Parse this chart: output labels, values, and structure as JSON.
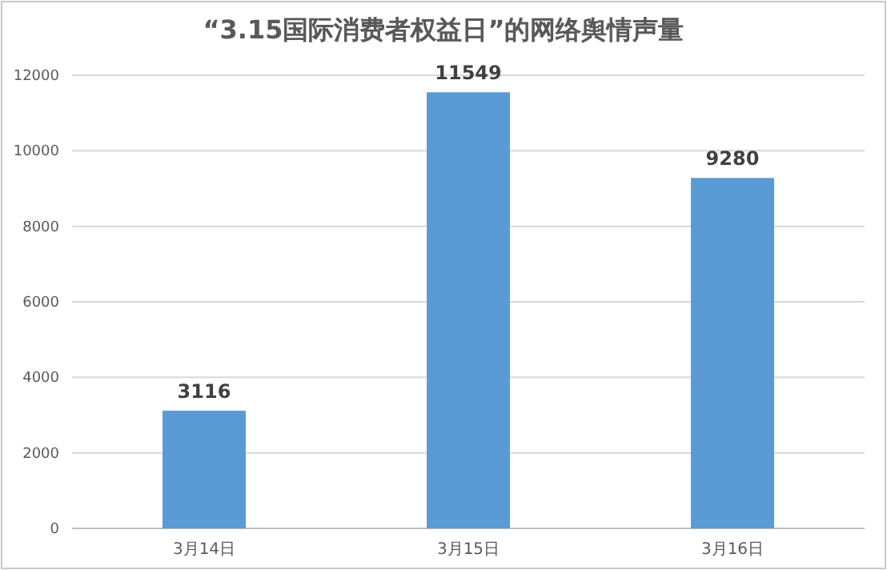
{
  "chart_data": {
    "type": "bar",
    "title": "“3.15国际消费者权益日”的网络舆情声量",
    "categories": [
      "3月14日",
      "3月15日",
      "3月16日"
    ],
    "values": [
      3116,
      11549,
      9280
    ],
    "color": "#5b9bd5",
    "ylim": [
      0,
      12000
    ],
    "yticks": [
      0,
      2000,
      4000,
      6000,
      8000,
      10000,
      12000
    ],
    "grid": "y",
    "data_labels": true
  }
}
